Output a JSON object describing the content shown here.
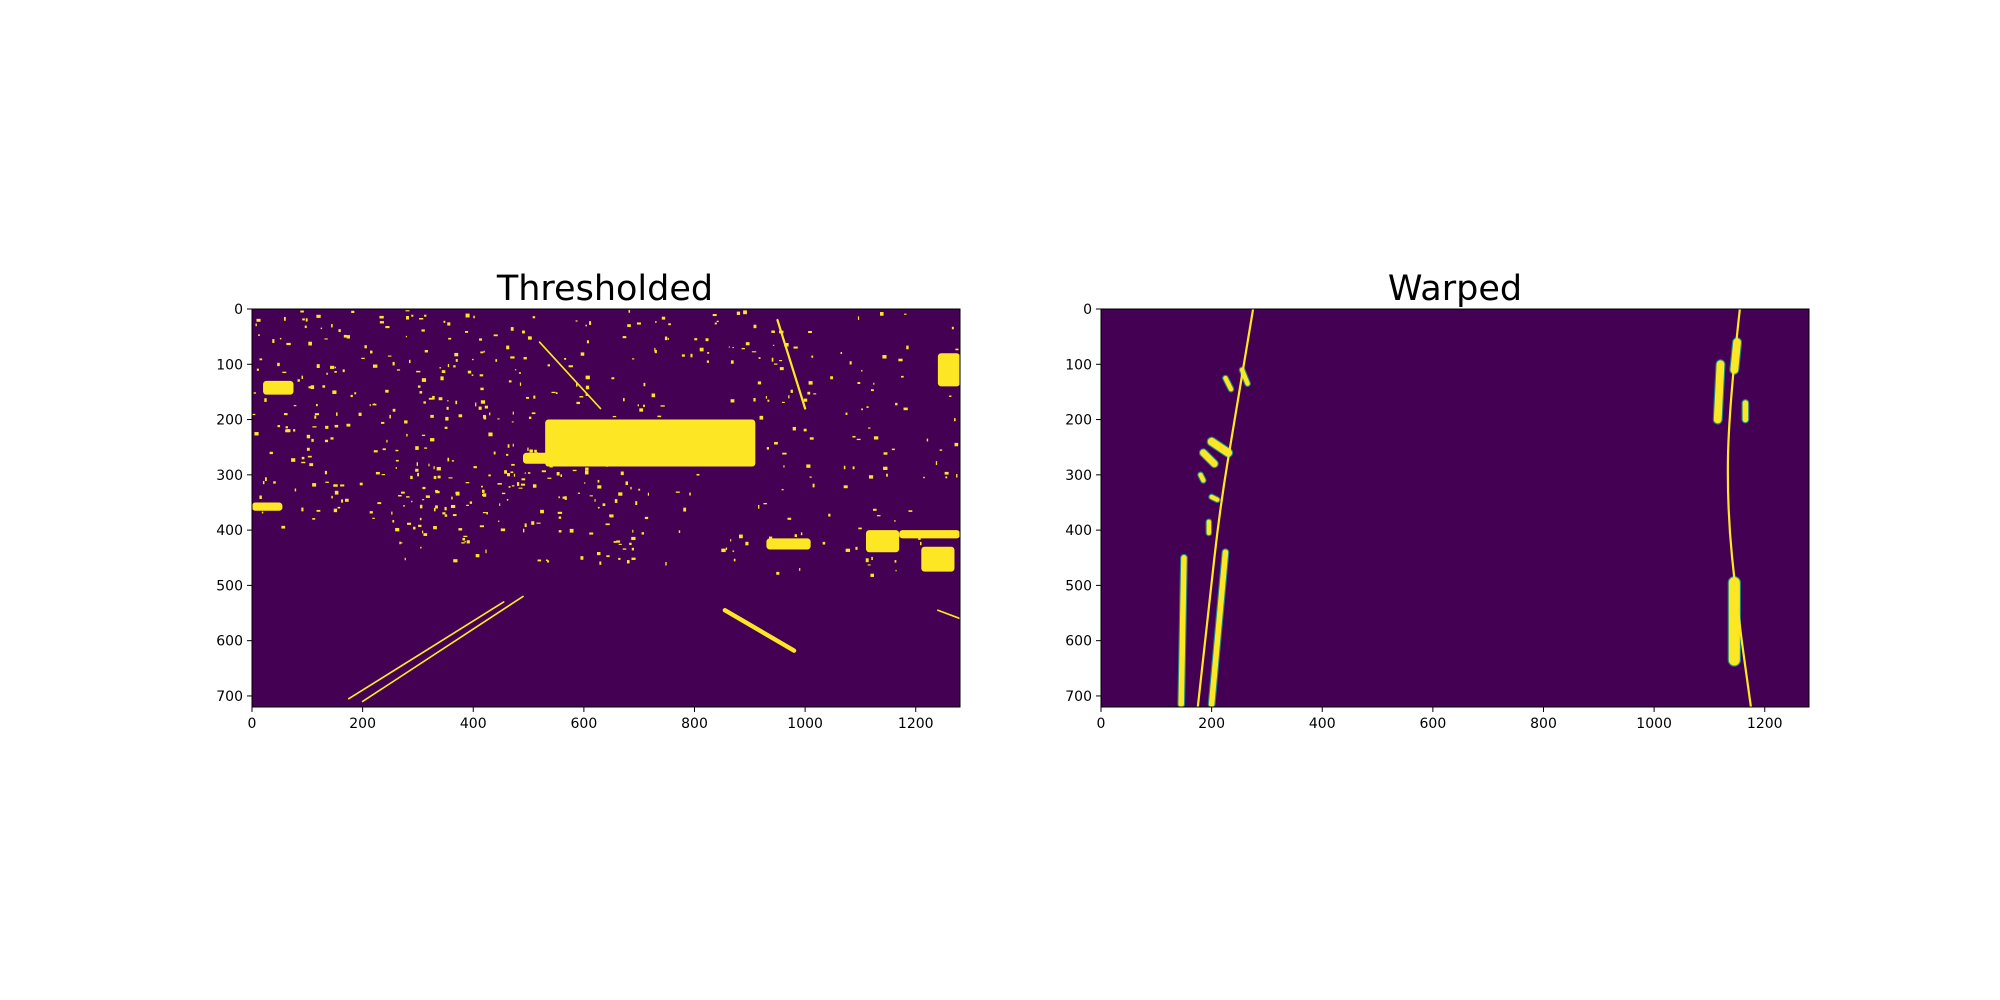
{
  "figure": {
    "background": "#ffffff"
  },
  "colors": {
    "background": "#440154",
    "foreground": "#fde725",
    "mid": "#21918c",
    "fit_line": "#fde725"
  },
  "chart_data": [
    {
      "type": "heatmap",
      "title": "Thresholded",
      "xlabel": "",
      "ylabel": "",
      "xlim": [
        0,
        1280
      ],
      "ylim": [
        720,
        0
      ],
      "xticks": [
        0,
        200,
        400,
        600,
        800,
        1000,
        1200
      ],
      "yticks": [
        0,
        100,
        200,
        300,
        400,
        500,
        600,
        700
      ],
      "grid": false,
      "blobs": [
        {
          "x": 530,
          "y": 200,
          "w": 380,
          "h": 85
        },
        {
          "x": 490,
          "y": 260,
          "w": 60,
          "h": 20
        },
        {
          "x": 0,
          "y": 350,
          "w": 55,
          "h": 15
        },
        {
          "x": 20,
          "y": 130,
          "w": 55,
          "h": 25
        },
        {
          "x": 930,
          "y": 415,
          "w": 80,
          "h": 20
        },
        {
          "x": 1110,
          "y": 400,
          "w": 60,
          "h": 40
        },
        {
          "x": 1170,
          "y": 400,
          "w": 110,
          "h": 15
        },
        {
          "x": 1210,
          "y": 430,
          "w": 60,
          "h": 45
        },
        {
          "x": 1240,
          "y": 80,
          "w": 40,
          "h": 60
        }
      ],
      "lines": [
        {
          "x1": 175,
          "y1": 705,
          "x2": 455,
          "y2": 530,
          "w": 3
        },
        {
          "x1": 200,
          "y1": 710,
          "x2": 490,
          "y2": 520,
          "w": 3
        },
        {
          "x1": 855,
          "y1": 545,
          "x2": 980,
          "y2": 618,
          "w": 8
        },
        {
          "x1": 1240,
          "y1": 545,
          "x2": 1280,
          "y2": 560,
          "w": 3
        },
        {
          "x1": 950,
          "y1": 20,
          "x2": 1000,
          "y2": 180,
          "w": 4
        },
        {
          "x1": 630,
          "y1": 180,
          "x2": 520,
          "y2": 60,
          "w": 3
        }
      ],
      "specks": [
        {
          "x": [
            0,
            520
          ],
          "y": [
            0,
            400
          ],
          "n": 260
        },
        {
          "x": [
            250,
            700
          ],
          "y": [
            280,
            460
          ],
          "n": 90
        },
        {
          "x": [
            520,
            1000
          ],
          "y": [
            0,
            200
          ],
          "n": 70
        },
        {
          "x": [
            900,
            1280
          ],
          "y": [
            0,
            320
          ],
          "n": 60
        },
        {
          "x": [
            600,
            1280
          ],
          "y": [
            280,
            480
          ],
          "n": 60
        }
      ]
    },
    {
      "type": "heatmap",
      "title": "Warped",
      "xlabel": "",
      "ylabel": "",
      "xlim": [
        0,
        1280
      ],
      "ylim": [
        720,
        0
      ],
      "xticks": [
        0,
        200,
        400,
        600,
        800,
        1000,
        1200
      ],
      "yticks": [
        0,
        100,
        200,
        300,
        400,
        500,
        600,
        700
      ],
      "grid": false,
      "lane_pixels": [
        {
          "x1": 150,
          "y1": 450,
          "x2": 145,
          "y2": 715,
          "w": 10
        },
        {
          "x1": 225,
          "y1": 440,
          "x2": 200,
          "y2": 715,
          "w": 10
        },
        {
          "x1": 200,
          "y1": 240,
          "x2": 230,
          "y2": 260,
          "w": 14
        },
        {
          "x1": 185,
          "y1": 260,
          "x2": 205,
          "y2": 280,
          "w": 12
        },
        {
          "x1": 255,
          "y1": 110,
          "x2": 265,
          "y2": 135,
          "w": 8
        },
        {
          "x1": 225,
          "y1": 125,
          "x2": 235,
          "y2": 145,
          "w": 8
        },
        {
          "x1": 195,
          "y1": 385,
          "x2": 195,
          "y2": 405,
          "w": 8
        },
        {
          "x1": 180,
          "y1": 300,
          "x2": 185,
          "y2": 310,
          "w": 8
        },
        {
          "x1": 200,
          "y1": 340,
          "x2": 210,
          "y2": 345,
          "w": 8
        },
        {
          "x1": 1120,
          "y1": 100,
          "x2": 1115,
          "y2": 200,
          "w": 14
        },
        {
          "x1": 1150,
          "y1": 60,
          "x2": 1145,
          "y2": 110,
          "w": 14
        },
        {
          "x1": 1165,
          "y1": 170,
          "x2": 1165,
          "y2": 200,
          "w": 10
        },
        {
          "x1": 1145,
          "y1": 495,
          "x2": 1145,
          "y2": 635,
          "w": 20
        }
      ],
      "fit_lines": [
        {
          "name": "left",
          "points": [
            [
              275,
              0
            ],
            [
              245,
              180
            ],
            [
              215,
              360
            ],
            [
              195,
              540
            ],
            [
              175,
              720
            ]
          ]
        },
        {
          "name": "right",
          "points": [
            [
              1155,
              0
            ],
            [
              1135,
              180
            ],
            [
              1132,
              360
            ],
            [
              1150,
              540
            ],
            [
              1175,
              720
            ]
          ]
        }
      ]
    }
  ]
}
